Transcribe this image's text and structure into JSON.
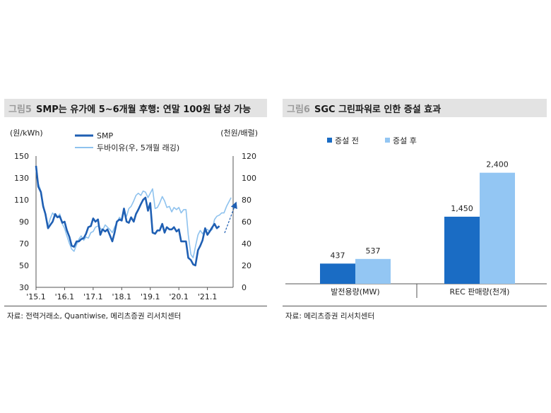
{
  "left": {
    "fig_label": "그림5",
    "title": "SMP는 유가에 5~6개월 후행: 연말 100원 달성 가능"
  },
  "right": {
    "fig_label": "그림6",
    "title": "SGC 그린파워로 인한 증설 효과"
  },
  "source_left": "자료: 전력거래소, Quantiwise, 메리츠증권 리서치센터",
  "source_right": "자료: 메리츠증권 리서치센터",
  "colors": {
    "smp": "#1f5fb3",
    "dubai": "#8ec2ee",
    "before": "#1a6cc4",
    "after": "#93c6f3"
  },
  "chart_data": [
    {
      "type": "line",
      "ylabel": "(원/kWh)",
      "y2label": "(천원/배럴)",
      "ylim": [
        30,
        150
      ],
      "y2lim": [
        0,
        120
      ],
      "yticks": [
        30,
        50,
        70,
        90,
        110,
        130,
        150
      ],
      "y2ticks": [
        0,
        20,
        40,
        60,
        80,
        100,
        120
      ],
      "xlim": [
        2015.0,
        2021.9
      ],
      "xticks": [
        {
          "label": "'15.1",
          "x": 2015.0
        },
        {
          "label": "'16.1",
          "x": 2016.0
        },
        {
          "label": "'17.1",
          "x": 2017.0
        },
        {
          "label": "'18.1",
          "x": 2018.0
        },
        {
          "label": "'19.1",
          "x": 2019.0
        },
        {
          "label": "'20.1",
          "x": 2020.0
        },
        {
          "label": "'21.1",
          "x": 2021.0
        }
      ],
      "legend_placement": "top-center",
      "series": [
        {
          "name": "SMP",
          "axis": "left",
          "x": [
            2015.0,
            2015.08,
            2015.17,
            2015.25,
            2015.33,
            2015.42,
            2015.5,
            2015.58,
            2015.67,
            2015.75,
            2015.83,
            2015.92,
            2016.0,
            2016.08,
            2016.17,
            2016.25,
            2016.33,
            2016.42,
            2016.5,
            2016.58,
            2016.67,
            2016.75,
            2016.83,
            2016.92,
            2017.0,
            2017.08,
            2017.17,
            2017.25,
            2017.33,
            2017.42,
            2017.5,
            2017.58,
            2017.67,
            2017.75,
            2017.83,
            2017.92,
            2018.0,
            2018.08,
            2018.17,
            2018.25,
            2018.33,
            2018.42,
            2018.5,
            2018.58,
            2018.67,
            2018.75,
            2018.83,
            2018.92,
            2019.0,
            2019.08,
            2019.17,
            2019.25,
            2019.33,
            2019.42,
            2019.5,
            2019.58,
            2019.67,
            2019.75,
            2019.83,
            2019.92,
            2020.0,
            2020.08,
            2020.17,
            2020.25,
            2020.33,
            2020.42,
            2020.5,
            2020.58,
            2020.67,
            2020.75,
            2020.83,
            2020.92,
            2021.0,
            2021.08,
            2021.17,
            2021.25,
            2021.33,
            2021.42
          ],
          "values": [
            141,
            122,
            117,
            104,
            97,
            84,
            87,
            90,
            97,
            94,
            95,
            89,
            90,
            82,
            76,
            68,
            67,
            72,
            72,
            74,
            75,
            79,
            85,
            86,
            93,
            90,
            92,
            78,
            83,
            81,
            83,
            78,
            72,
            80,
            90,
            92,
            91,
            102,
            90,
            89,
            94,
            90,
            97,
            101,
            106,
            110,
            112,
            100,
            107,
            80,
            79,
            82,
            82,
            88,
            80,
            85,
            83,
            83,
            85,
            81,
            83,
            72,
            72,
            72,
            57,
            55,
            51,
            50,
            64,
            68,
            73,
            84,
            78,
            81,
            85,
            88,
            84,
            86
          ]
        },
        {
          "name": "두바이유(우, 5개월 래깅)",
          "axis": "right",
          "x": [
            2015.0,
            2015.08,
            2015.17,
            2015.25,
            2015.33,
            2015.42,
            2015.5,
            2015.58,
            2015.67,
            2015.75,
            2015.83,
            2015.92,
            2016.0,
            2016.08,
            2016.17,
            2016.25,
            2016.33,
            2016.42,
            2016.5,
            2016.58,
            2016.67,
            2016.75,
            2016.83,
            2016.92,
            2017.0,
            2017.08,
            2017.17,
            2017.25,
            2017.33,
            2017.42,
            2017.5,
            2017.58,
            2017.67,
            2017.75,
            2017.83,
            2017.92,
            2018.0,
            2018.08,
            2018.17,
            2018.25,
            2018.33,
            2018.42,
            2018.5,
            2018.58,
            2018.67,
            2018.75,
            2018.83,
            2018.92,
            2019.0,
            2019.08,
            2019.17,
            2019.25,
            2019.33,
            2019.42,
            2019.5,
            2019.58,
            2019.67,
            2019.75,
            2019.83,
            2019.92,
            2020.0,
            2020.08,
            2020.17,
            2020.25,
            2020.33,
            2020.42,
            2020.5,
            2020.58,
            2020.67,
            2020.75,
            2020.83,
            2020.92,
            2021.0,
            2021.08,
            2021.17,
            2021.25,
            2021.33,
            2021.42,
            2021.5,
            2021.58,
            2021.67,
            2021.75,
            2021.83
          ],
          "values": [
            108,
            95,
            88,
            76,
            66,
            56,
            63,
            68,
            65,
            64,
            67,
            58,
            54,
            47,
            40,
            35,
            33,
            39,
            44,
            47,
            43,
            46,
            45,
            50,
            51,
            55,
            56,
            54,
            52,
            57,
            55,
            53,
            50,
            55,
            59,
            64,
            62,
            68,
            65,
            72,
            74,
            79,
            84,
            86,
            84,
            88,
            87,
            82,
            86,
            90,
            72,
            73,
            77,
            83,
            79,
            73,
            74,
            69,
            73,
            71,
            73,
            68,
            71,
            71,
            48,
            30,
            27,
            37,
            48,
            52,
            49,
            52,
            53,
            51,
            53,
            62,
            65,
            66,
            68,
            68,
            74,
            78,
            82
          ]
        }
      ],
      "annotation": "dashed-arrow"
    },
    {
      "type": "bar",
      "categories": [
        "발전용량(MW)",
        "REC 판매량(천개)"
      ],
      "series": [
        {
          "name": "증설 전",
          "values": [
            437,
            1450
          ],
          "labels": [
            "437",
            "1,450"
          ]
        },
        {
          "name": "증설 후",
          "values": [
            537,
            2400
          ],
          "labels": [
            "537",
            "2,400"
          ]
        }
      ],
      "legend_placement": "top-left"
    }
  ]
}
